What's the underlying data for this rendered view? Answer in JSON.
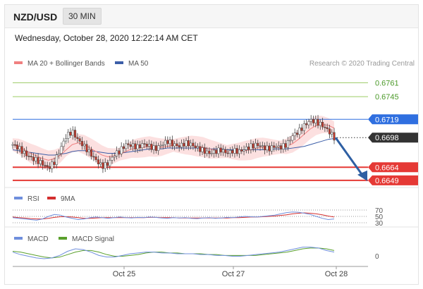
{
  "header": {
    "pair": "NZD/USD",
    "timeframe": "30 MIN"
  },
  "datetime": "Wednesday, October 28, 2020 12:22:14 AM CET",
  "credit": "Research © 2020 Trading Central",
  "colors": {
    "ma20": "#f08080",
    "ma50": "#3c5ea8",
    "band": "#fbd3d3",
    "resistance_green": "#9ccc65",
    "pivot_blue": "#2f6fe0",
    "support_red": "#e53935",
    "price": "#333333",
    "arrow": "#2e5fa3",
    "rsi": "#6f8fdd",
    "rsi_9ma": "#d32f2f",
    "macd": "#6f8fdd",
    "macd_signal": "#5aa02c"
  },
  "chart_data": [
    {
      "type": "line",
      "name": "price",
      "legend": [
        {
          "label": "MA 20 + Bollinger Bands",
          "color": "#f08080"
        },
        {
          "label": "MA 50",
          "color": "#3c5ea8"
        }
      ],
      "ylim": [
        0.6644,
        0.6775
      ],
      "levels": [
        {
          "value": 0.6761,
          "label": "0.6761",
          "kind": "resistance-green"
        },
        {
          "value": 0.6745,
          "label": "0.6745",
          "kind": "resistance-green"
        },
        {
          "value": 0.6719,
          "label": "0.6719",
          "kind": "pivot-blue"
        },
        {
          "value": 0.6698,
          "label": "0.6698",
          "kind": "last-price"
        },
        {
          "value": 0.6664,
          "label": "0.6664",
          "kind": "support-red"
        },
        {
          "value": 0.6649,
          "label": "0.6649",
          "kind": "support-red"
        }
      ],
      "price_path": [
        0.669,
        0.6686,
        0.668,
        0.6675,
        0.6672,
        0.6668,
        0.6663,
        0.667,
        0.6685,
        0.67,
        0.6705,
        0.6695,
        0.6688,
        0.668,
        0.6672,
        0.6665,
        0.6668,
        0.6678,
        0.6683,
        0.669,
        0.6689,
        0.6687,
        0.6691,
        0.6688,
        0.6685,
        0.669,
        0.6694,
        0.669,
        0.6688,
        0.6692,
        0.669,
        0.6686,
        0.6683,
        0.668,
        0.6682,
        0.6684,
        0.668,
        0.6683,
        0.6682,
        0.6685,
        0.6688,
        0.669,
        0.6687,
        0.6685,
        0.6688,
        0.6687,
        0.669,
        0.67,
        0.6705,
        0.6712,
        0.6718,
        0.6716,
        0.6712,
        0.6706,
        0.6698
      ],
      "ma20_path": [
        0.669,
        0.6688,
        0.6684,
        0.668,
        0.6677,
        0.6674,
        0.6672,
        0.6674,
        0.6678,
        0.6684,
        0.669,
        0.6692,
        0.669,
        0.6686,
        0.6682,
        0.6678,
        0.6676,
        0.6677,
        0.6679,
        0.6682,
        0.6685,
        0.6686,
        0.6687,
        0.6688,
        0.6687,
        0.6687,
        0.6688,
        0.6689,
        0.6689,
        0.6689,
        0.6689,
        0.6688,
        0.6687,
        0.6685,
        0.6684,
        0.6683,
        0.6682,
        0.6682,
        0.6682,
        0.6683,
        0.6684,
        0.6686,
        0.6687,
        0.6687,
        0.6687,
        0.6687,
        0.6688,
        0.6691,
        0.6696,
        0.6702,
        0.6708,
        0.6712,
        0.6713,
        0.6712,
        0.6709
      ],
      "ma50_path": [
        0.6684,
        0.6683,
        0.6682,
        0.6681,
        0.668,
        0.6679,
        0.6678,
        0.6678,
        0.6679,
        0.668,
        0.6682,
        0.6683,
        0.6683,
        0.6683,
        0.6682,
        0.6681,
        0.668,
        0.668,
        0.668,
        0.6681,
        0.6682,
        0.6683,
        0.6684,
        0.6685,
        0.6685,
        0.6685,
        0.6686,
        0.6686,
        0.6686,
        0.6686,
        0.6686,
        0.6686,
        0.6686,
        0.6685,
        0.6685,
        0.6685,
        0.6684,
        0.6684,
        0.6684,
        0.6684,
        0.6684,
        0.6684,
        0.6684,
        0.6684,
        0.6685,
        0.6685,
        0.6685,
        0.6686,
        0.6687,
        0.6688,
        0.669,
        0.6692,
        0.6694,
        0.6696,
        0.6697
      ],
      "band_width": 0.0009,
      "forecast_target": 0.6649
    },
    {
      "type": "line",
      "name": "rsi",
      "legend": [
        {
          "label": "RSI",
          "color": "#6f8fdd"
        },
        {
          "label": "9MA",
          "color": "#d32f2f"
        }
      ],
      "ylim": [
        30,
        70
      ],
      "ticks": [
        "70",
        "50",
        "30"
      ],
      "rsi_path": [
        46,
        44,
        42,
        40,
        38,
        42,
        50,
        56,
        54,
        48,
        44,
        40,
        42,
        46,
        48,
        46,
        44,
        46,
        48,
        46,
        45,
        47,
        46,
        48,
        47,
        45,
        44,
        46,
        45,
        46,
        44,
        43,
        45,
        46,
        44,
        45,
        47,
        46,
        48,
        50,
        49,
        48,
        50,
        52,
        54,
        58,
        62,
        64,
        63,
        60,
        56,
        50,
        44,
        40,
        42
      ],
      "ma9_path": [
        48,
        46,
        45,
        43,
        42,
        42,
        44,
        47,
        49,
        49,
        48,
        46,
        44,
        44,
        45,
        46,
        46,
        46,
        46,
        46,
        46,
        46,
        46,
        47,
        47,
        46,
        46,
        46,
        45,
        45,
        45,
        45,
        45,
        45,
        45,
        45,
        45,
        46,
        46,
        47,
        48,
        48,
        49,
        50,
        51,
        53,
        55,
        58,
        60,
        61,
        60,
        58,
        55,
        51,
        48
      ]
    },
    {
      "type": "line",
      "name": "macd",
      "legend": [
        {
          "label": "MACD",
          "color": "#6f8fdd"
        },
        {
          "label": "MACD Signal",
          "color": "#5aa02c"
        }
      ],
      "ylim": [
        -0.0012,
        0.0012
      ],
      "ticks": [
        "0"
      ],
      "macd_path": [
        0.0002,
        -0.0001,
        -0.0003,
        -0.0005,
        -0.0006,
        -0.0005,
        -0.0002,
        0.0003,
        0.0006,
        0.0005,
        0.0002,
        -0.0002,
        -0.0004,
        -0.0004,
        -0.0002,
        0.0,
        0.0001,
        0.0002,
        0.0002,
        0.0001,
        0.0001,
        0.0,
        0.0,
        0.0,
        -0.0001,
        -0.0001,
        -0.0002,
        -0.0002,
        -0.0003,
        -0.0003,
        -0.0002,
        -0.0001,
        0.0,
        0.0001,
        0.0002,
        0.0004,
        0.0006,
        0.0008,
        0.0008,
        0.0007,
        0.0004,
        0.0002
      ],
      "signal_path": [
        0.0003,
        0.0002,
        0.0,
        -0.0002,
        -0.0004,
        -0.0005,
        -0.0004,
        -0.0001,
        0.0002,
        0.0004,
        0.0004,
        0.0002,
        -0.0001,
        -0.0003,
        -0.0003,
        -0.0002,
        -0.0001,
        0.0001,
        0.0002,
        0.0002,
        0.0001,
        0.0001,
        0.0,
        0.0,
        0.0,
        -0.0001,
        -0.0001,
        -0.0002,
        -0.0002,
        -0.0002,
        -0.0002,
        -0.0002,
        -0.0001,
        0.0,
        0.0001,
        0.0002,
        0.0004,
        0.0006,
        0.0007,
        0.0007,
        0.0006,
        0.0004
      ],
      "x_ticks": [
        "Oct 25",
        "Oct 27",
        "Oct 28"
      ]
    }
  ]
}
